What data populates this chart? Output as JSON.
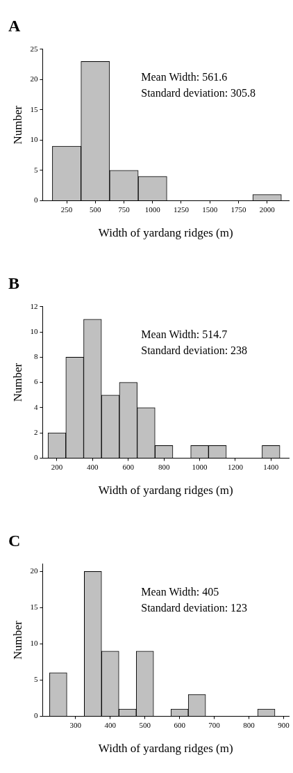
{
  "chart_data": [
    {
      "type": "histogram",
      "title": "A",
      "xlabel": "Width of yardang ridges (m)",
      "ylabel": "Number",
      "annotations": [
        "Mean Width: 561.6",
        "Standard deviation: 305.8"
      ],
      "bins": [
        125,
        375,
        625,
        875,
        1125,
        1375,
        1625,
        1875,
        2125
      ],
      "values": [
        9,
        23,
        5,
        4,
        0,
        0,
        0,
        1
      ],
      "color": "#c0c0c0",
      "xlim": [
        40,
        2190
      ],
      "xticks": [
        250,
        500,
        750,
        1000,
        1250,
        1500,
        1750,
        2000
      ],
      "ylim": [
        0,
        25
      ],
      "yticks": [
        0,
        5,
        10,
        15,
        20,
        25
      ]
    },
    {
      "type": "histogram",
      "title": "B",
      "xlabel": "Width of yardang ridges (m)",
      "ylabel": "Number",
      "annotations": [
        "Mean Width: 514.7",
        "Standard deviation: 238"
      ],
      "bins": [
        150,
        250,
        350,
        450,
        550,
        650,
        750,
        850,
        950,
        1050,
        1150,
        1250,
        1350,
        1450
      ],
      "values": [
        2,
        8,
        11,
        5,
        6,
        4,
        1,
        0,
        1,
        1,
        0,
        0,
        1
      ],
      "color": "#c0c0c0",
      "xlim": [
        120,
        1500
      ],
      "xticks": [
        200,
        400,
        600,
        800,
        1000,
        1200,
        1400
      ],
      "ylim": [
        0,
        12
      ],
      "yticks": [
        0,
        2,
        4,
        6,
        8,
        10,
        12
      ]
    },
    {
      "type": "histogram",
      "title": "C",
      "xlabel": "Width of yardang ridges (m)",
      "ylabel": "Number",
      "annotations": [
        "Mean Width: 405",
        "Standard deviation: 123"
      ],
      "bins": [
        225,
        275,
        325,
        375,
        425,
        475,
        525,
        575,
        625,
        675,
        725,
        775,
        825,
        875
      ],
      "values": [
        6,
        0,
        20,
        9,
        1,
        9,
        0,
        1,
        3,
        0,
        0,
        0,
        1
      ],
      "color": "#c0c0c0",
      "xlim": [
        205,
        915
      ],
      "xticks": [
        300,
        400,
        500,
        600,
        700,
        800,
        900
      ],
      "ylim": [
        0,
        21
      ],
      "yticks": [
        0,
        5,
        10,
        15,
        20
      ]
    }
  ]
}
